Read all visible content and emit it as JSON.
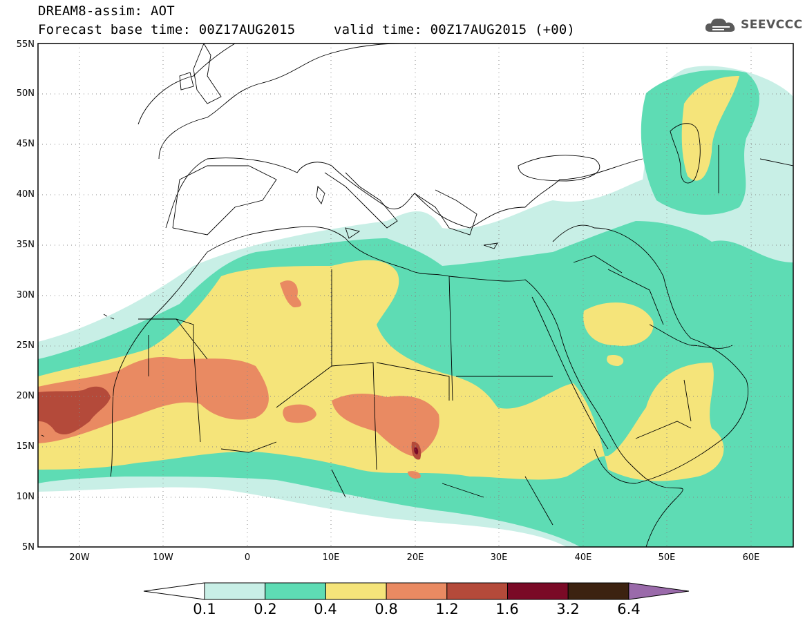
{
  "header": {
    "title_line1": "DREAM8-assim: AOT",
    "title_line2_base": "Forecast base time: 00Z17AUG2015",
    "title_line2_valid": "valid time: 00Z17AUG2015 (+00)",
    "logo_text": "SEEVCCC",
    "logo_icon": "cloud-icon"
  },
  "map": {
    "projection": "latitude-longitude",
    "lon_range": [
      -25,
      65
    ],
    "lat_range": [
      5,
      55
    ],
    "lat_labels": [
      "55N",
      "50N",
      "45N",
      "40N",
      "35N",
      "30N",
      "25N",
      "20N",
      "15N",
      "10N",
      "5N"
    ],
    "lon_labels": [
      "20W",
      "10W",
      "0",
      "10E",
      "20E",
      "30E",
      "40E",
      "50E",
      "60E"
    ],
    "gridlines": "dotted",
    "field": "Aerosol Optical Thickness (AOT)"
  },
  "colorbar": {
    "labels": [
      "0.1",
      "0.2",
      "0.4",
      "0.8",
      "1.2",
      "1.6",
      "3.2",
      "6.4"
    ],
    "colors": [
      "#ffffff",
      "#c8efe6",
      "#5edcb4",
      "#f5e47a",
      "#e98a62",
      "#b44a3a",
      "#7a0a26",
      "#3c2210",
      "#9a6aaa"
    ]
  }
}
